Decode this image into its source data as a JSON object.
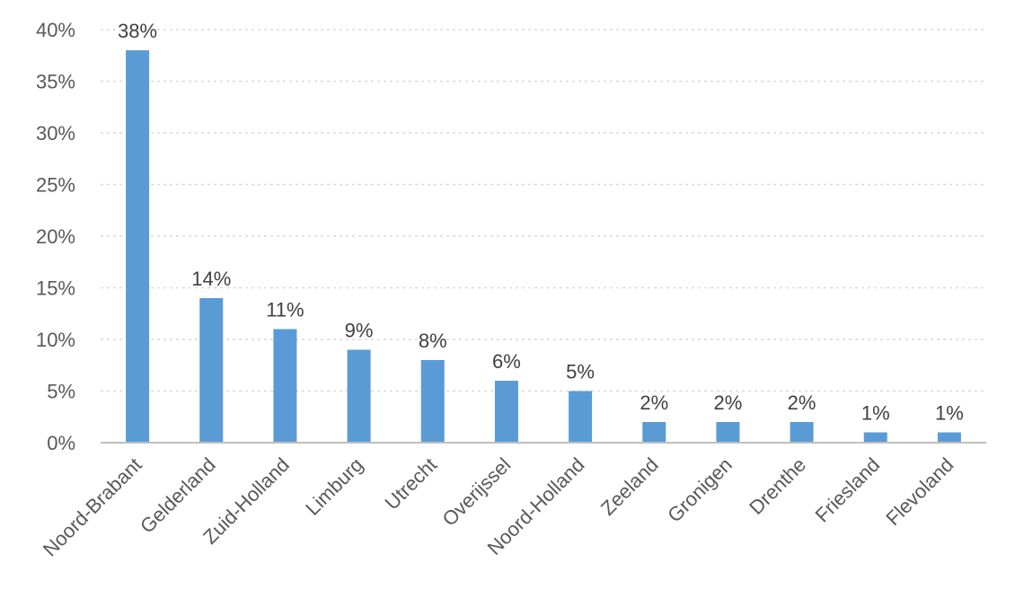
{
  "chart_data": {
    "type": "bar",
    "title": "",
    "xlabel": "",
    "ylabel": "",
    "categories": [
      "Noord-Brabant",
      "Gelderland",
      "Zuid-Holland",
      "Limburg",
      "Utrecht",
      "Overijssel",
      "Noord-Holland",
      "Zeeland",
      "Gronigen",
      "Drenthe",
      "Friesland",
      "Flevoland"
    ],
    "values": [
      38,
      14,
      11,
      9,
      8,
      6,
      5,
      2,
      2,
      2,
      1,
      1
    ],
    "data_labels": [
      "38%",
      "14%",
      "11%",
      "9%",
      "8%",
      "6%",
      "5%",
      "2%",
      "2%",
      "2%",
      "1%",
      "1%"
    ],
    "ylim": [
      0,
      40
    ],
    "yticks": [
      0,
      5,
      10,
      15,
      20,
      25,
      30,
      35,
      40
    ],
    "ytick_labels": [
      "0%",
      "5%",
      "10%",
      "15%",
      "20%",
      "25%",
      "30%",
      "35%",
      "40%"
    ],
    "grid": true,
    "legend": "none",
    "bar_color": "#5b9bd5"
  }
}
